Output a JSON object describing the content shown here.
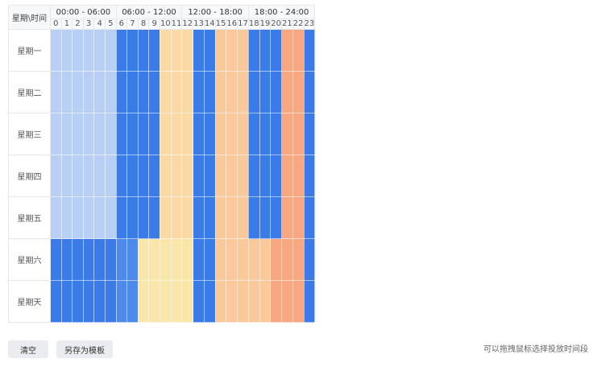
{
  "scheduler": {
    "corner_label": "星期\\时间",
    "ranges": [
      "00:00 - 06:00",
      "06:00 - 12:00",
      "12:00 - 18:00",
      "18:00 - 24:00"
    ],
    "hours": [
      "0",
      "1",
      "2",
      "3",
      "4",
      "5",
      "6",
      "7",
      "8",
      "9",
      "10",
      "11",
      "12",
      "13",
      "14",
      "15",
      "16",
      "17",
      "18",
      "19",
      "20",
      "21",
      "22",
      "23"
    ],
    "days": [
      "星期一",
      "星期二",
      "星期三",
      "星期四",
      "星期五",
      "星期六",
      "星期天"
    ],
    "palette": {
      "A": "#b7cff5",
      "B": "#3b7be8",
      "C": "#fbd9a5",
      "D": "#fbc89a",
      "E": "#f8a783",
      "F": "#4d8aeb",
      "G": "#fbe6a9"
    },
    "rows": [
      "AAAAAABBBBCCCBBDDDBBBEEB",
      "AAAAAABBBBCCCBBDDDBBBEEB",
      "AAAAAABBBBCCCBBDDDBBBEEB",
      "AAAAAABBBBCCCBBDDDBBBEEB",
      "AAAAAABBBBCCCBBDDDBBBEEB",
      "BBBBBBFFGGGGGBBDDDDDEEEB",
      "BBBBBBFFGGGGGBBDDDDDEEEB"
    ]
  },
  "actions": {
    "clear_label": "清空",
    "save_template_label": "另存为模板"
  },
  "hint": "可以拖拽鼠标选择投放时间段"
}
